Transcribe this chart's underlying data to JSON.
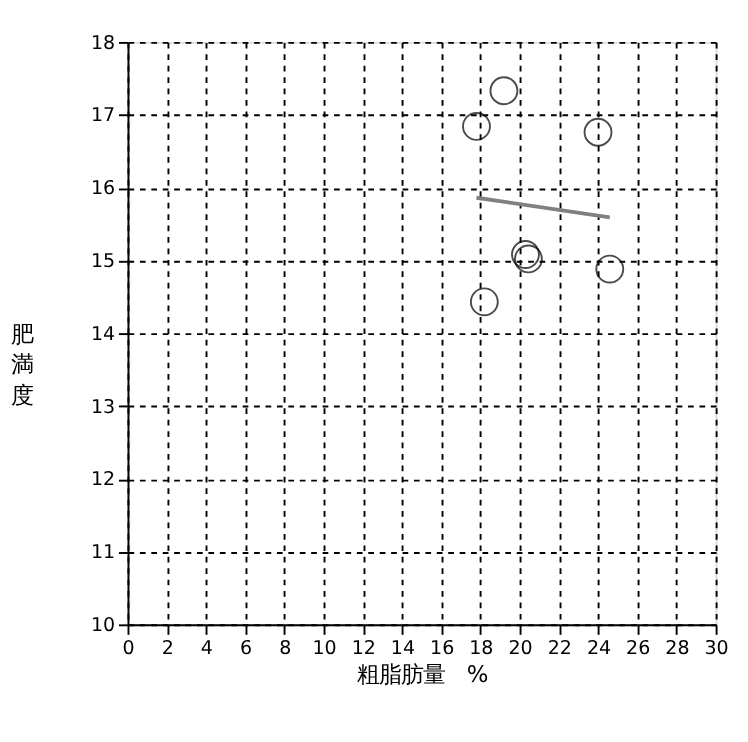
{
  "chart_data": {
    "type": "scatter",
    "xlabel": "粗脂肪量　%",
    "ylabel": "肥満度",
    "xlim": [
      0,
      30
    ],
    "ylim": [
      10,
      18
    ],
    "xticks": [
      0,
      2,
      4,
      6,
      8,
      10,
      12,
      14,
      16,
      18,
      20,
      22,
      24,
      26,
      28,
      30
    ],
    "yticks": [
      10,
      11,
      12,
      13,
      14,
      15,
      16,
      17,
      18
    ],
    "grid": true,
    "series": [
      {
        "color": "#000000",
        "marker": "circle",
        "x": [
          19.2,
          17.8,
          24.0,
          20.3,
          20.45,
          24.6,
          18.2
        ],
        "values": [
          17.33,
          16.84,
          16.76,
          15.08,
          15.02,
          14.88,
          14.43
        ]
      },
      {
        "type": "line",
        "marker": "none",
        "color": "#808080",
        "x": [
          17.8,
          24.6
        ],
        "values": [
          15.86,
          15.59
        ]
      }
    ]
  }
}
